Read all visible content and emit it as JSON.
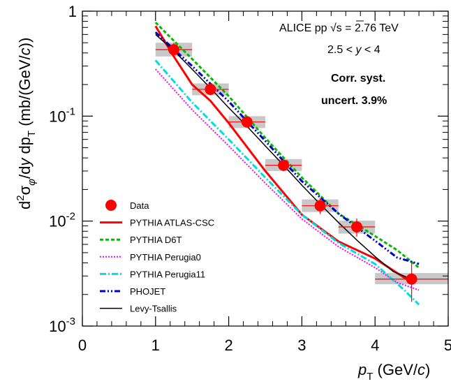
{
  "chart_data": {
    "type": "line",
    "xlabel": {
      "p": "p",
      "sub": "T",
      "rest": " (GeV/",
      "c": "c",
      "close": ")"
    },
    "ylabel": {
      "d": "d",
      "two": "2",
      "sigma": "σ",
      "phi": "φ",
      "mid": "/d",
      "y": "y",
      "dp": " dp",
      "T": "T",
      "unit": " (mb/(GeV/",
      "c": "c",
      "close": "))"
    },
    "xlim": [
      0,
      5
    ],
    "ylim": [
      0.001,
      1
    ],
    "log_y": true,
    "x_ticks": [
      {
        "v": 0,
        "label": "0"
      },
      {
        "v": 1,
        "label": "1"
      },
      {
        "v": 2,
        "label": "2"
      },
      {
        "v": 3,
        "label": "3"
      },
      {
        "v": 4,
        "label": "4"
      },
      {
        "v": 5,
        "label": "5"
      }
    ],
    "y_ticks": [
      {
        "v": 1,
        "base": "1",
        "exp": ""
      },
      {
        "v": 0.1,
        "base": "10",
        "exp": "-1"
      },
      {
        "v": 0.01,
        "base": "10",
        "exp": "-2"
      },
      {
        "v": 0.001,
        "base": "10",
        "exp": "-3"
      }
    ],
    "annotations": {
      "line1_pre": "ALICE pp ",
      "sqrt": "√",
      "s": "s",
      "line1_post": " = 2.76 TeV",
      "line2_pre": "2.5 < ",
      "line2_y": "y",
      "line2_post": " < 4",
      "line3": "Corr. syst.",
      "line4": "uncert. 3.9%"
    },
    "data_points": {
      "name": "Data",
      "color": "#ff0000",
      "points": [
        {
          "x": 1.25,
          "y": 0.43,
          "xlo": 1.0,
          "xhi": 1.5,
          "ylo": 0.37,
          "yhi": 0.5,
          "slo": 0.37,
          "shi": 0.5
        },
        {
          "x": 1.75,
          "y": 0.18,
          "xlo": 1.5,
          "xhi": 2.0,
          "ylo": 0.158,
          "yhi": 0.205,
          "slo": 0.158,
          "shi": 0.205
        },
        {
          "x": 2.25,
          "y": 0.088,
          "xlo": 2.0,
          "xhi": 2.5,
          "ylo": 0.078,
          "yhi": 0.1,
          "slo": 0.077,
          "shi": 0.1
        },
        {
          "x": 2.75,
          "y": 0.034,
          "xlo": 2.5,
          "xhi": 3.0,
          "ylo": 0.03,
          "yhi": 0.038,
          "slo": 0.03,
          "shi": 0.039
        },
        {
          "x": 3.25,
          "y": 0.014,
          "xlo": 3.0,
          "xhi": 3.5,
          "ylo": 0.0117,
          "yhi": 0.0166,
          "slo": 0.0122,
          "shi": 0.0161
        },
        {
          "x": 3.75,
          "y": 0.0088,
          "xlo": 3.5,
          "xhi": 4.0,
          "ylo": 0.0071,
          "yhi": 0.0106,
          "slo": 0.0076,
          "shi": 0.0101
        },
        {
          "x": 4.5,
          "y": 0.0028,
          "xlo": 4.0,
          "xhi": 5.0,
          "ylo": 0.0017,
          "yhi": 0.004,
          "slo": 0.0025,
          "shi": 0.0032
        }
      ]
    },
    "series": [
      {
        "name": "PYTHIA ATLAS-CSC",
        "color": "#ff0000",
        "dash": "",
        "width": 3,
        "x": [
          1.0,
          1.25,
          1.5,
          1.75,
          2.0,
          2.5,
          3.0,
          3.5,
          4.0,
          4.5
        ],
        "y": [
          0.72,
          0.37,
          0.2,
          0.14,
          0.086,
          0.03,
          0.0115,
          0.0064,
          0.0044,
          0.0026
        ]
      },
      {
        "name": "PYTHIA D6T",
        "color": "#00bb00",
        "dash": "5,3",
        "width": 3,
        "x": [
          1.0,
          1.5,
          2.0,
          2.5,
          3.0,
          3.5,
          4.0,
          4.3,
          4.6
        ],
        "y": [
          0.78,
          0.35,
          0.155,
          0.062,
          0.026,
          0.0118,
          0.0072,
          0.0053,
          0.0036
        ]
      },
      {
        "name": "PYTHIA Perugia0",
        "color": "#ff00ff",
        "dash": "2,2",
        "width": 2,
        "x": [
          1.0,
          1.5,
          2.0,
          2.5,
          3.0,
          3.5,
          4.0,
          4.3,
          4.6
        ],
        "y": [
          0.28,
          0.115,
          0.052,
          0.023,
          0.0105,
          0.0057,
          0.0036,
          0.0026,
          0.0022
        ]
      },
      {
        "name": "PYTHIA Perugia11",
        "color": "#00dddd",
        "dash": "9,3,2,3",
        "width": 3,
        "x": [
          1.0,
          1.5,
          2.0,
          2.5,
          3.0,
          3.5,
          4.0,
          4.4,
          4.6
        ],
        "y": [
          0.34,
          0.135,
          0.06,
          0.026,
          0.0115,
          0.0062,
          0.0039,
          0.0022,
          0.0016
        ]
      },
      {
        "name": "PHOJET",
        "color": "#0000cc",
        "dash": "8,3,2,3,2,3",
        "width": 3,
        "x": [
          1.0,
          1.5,
          2.0,
          2.5,
          3.0,
          3.5,
          4.0,
          4.3,
          4.6
        ],
        "y": [
          0.63,
          0.3,
          0.138,
          0.058,
          0.024,
          0.0118,
          0.0065,
          0.0045,
          0.0039
        ]
      },
      {
        "name": "Levy-Tsallis",
        "color": "#000000",
        "dash": "",
        "width": 1.5,
        "x": [
          1.0,
          1.25,
          1.5,
          1.75,
          2.0,
          2.25,
          2.5,
          2.75,
          3.0,
          3.25,
          3.5,
          3.75,
          4.0,
          4.25,
          4.5
        ],
        "y": [
          0.6,
          0.42,
          0.28,
          0.185,
          0.12,
          0.08,
          0.052,
          0.034,
          0.022,
          0.0145,
          0.0097,
          0.0066,
          0.0046,
          0.0033,
          0.0028
        ]
      }
    ]
  }
}
